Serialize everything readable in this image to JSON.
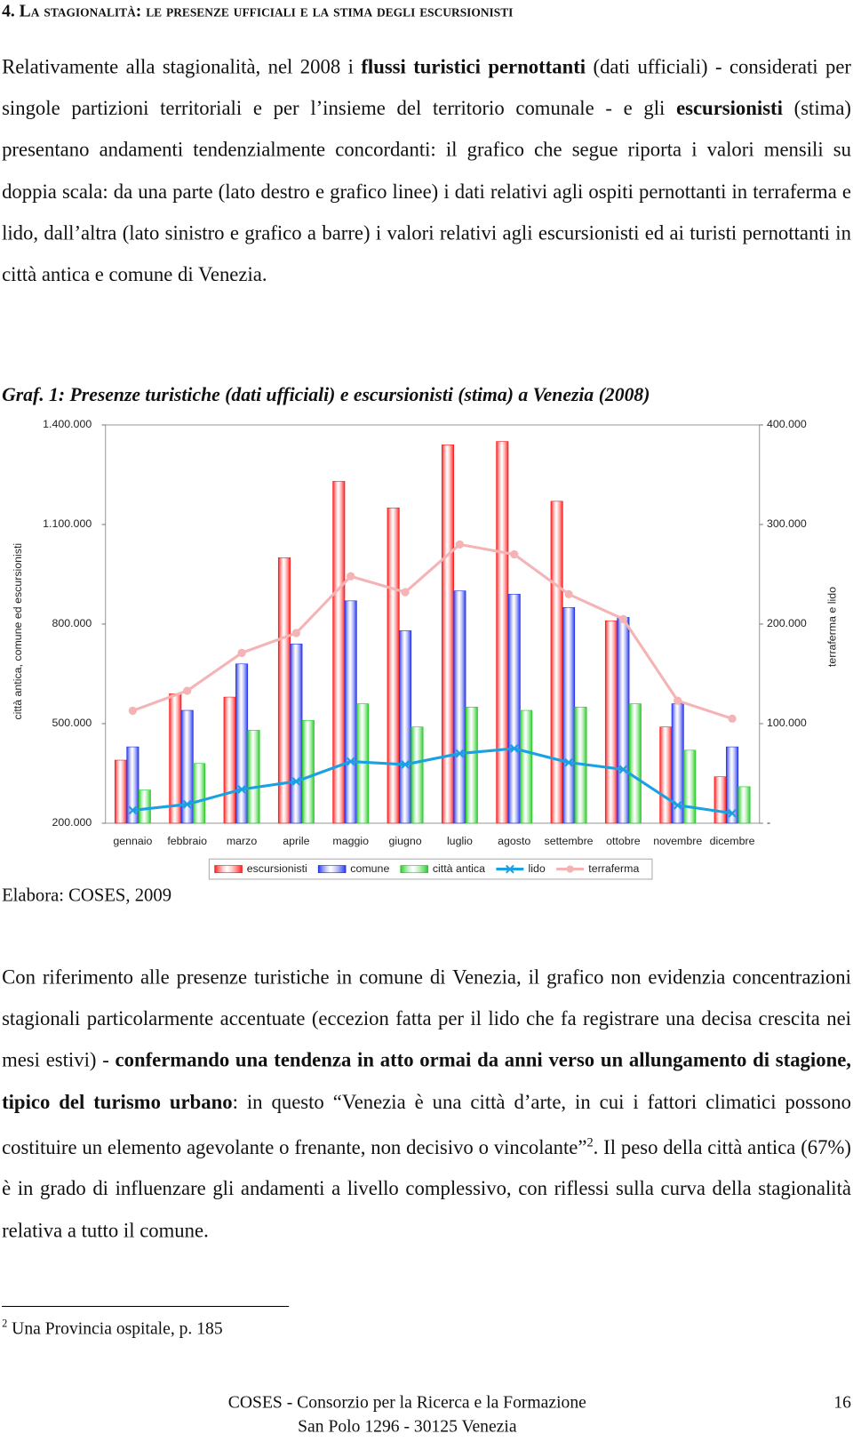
{
  "heading": "4. La stagionalità: le presenze ufficiali e la stima degli escursionisti",
  "paragraphs": [
    [
      {
        "text": "Relativamente alla stagionalità, nel 2008 i "
      },
      {
        "text": "flussi turistici pernottanti",
        "bold": true
      },
      {
        "text": " (dati ufficiali) - considerati per singole partizioni territoriali e per l’insieme del territorio comunale - e gli "
      },
      {
        "text": "escursionisti",
        "bold": true
      },
      {
        "text": " (stima) presentano andamenti tendenzialmente concordanti: il grafico che segue riporta i valori mensili su doppia scala: da una parte (lato destro e grafico linee) i dati relativi agli ospiti pernottanti in terraferma e lido, dall’altra (lato sinistro e grafico a barre) i valori relativi agli escursionisti ed ai turisti pernottanti in città antica e comune di Venezia."
      }
    ],
    [
      {
        "text": "Con riferimento alle presenze turistiche in comune di Venezia, il grafico non evidenzia concentrazioni stagionali particolarmente accentuate (eccezion fatta per il lido che fa registrare una decisa crescita nei mesi estivi) - "
      },
      {
        "text": "confermando una tendenza in atto ormai da anni verso un allungamento di stagione, tipico del turismo urbano",
        "bold": true
      },
      {
        "text": ": in questo “Venezia è una città d’arte, in cui i fattori climatici possono costituire un elemento agevolante o frenante, non decisivo o vincolante”"
      },
      {
        "text": "2",
        "sup": true
      },
      {
        "text": ". Il peso della città antica (67%) è in grado di influenzare gli andamenti a livello complessivo, con riflessi sulla curva della stagionalità relativa a tutto il comune."
      }
    ]
  ],
  "caption": "Graf. 1: Presenze turistiche (dati ufficiali) e escursionisti (stima) a Venezia (2008)",
  "source": "Elabora: COSES, 2009",
  "footnote": {
    "number": "2",
    "text": "Una Provincia ospitale, p. 185"
  },
  "footer": {
    "line1": "COSES - Consorzio per la Ricerca e la Formazione",
    "line2": "San Polo 1296 - 30125 Venezia",
    "page": "16"
  },
  "chart_data": {
    "type": "combo",
    "y_label": "città antica, comune ed escursionisti",
    "y2_label": "terraferma e lido",
    "categories": [
      "gennaio",
      "febbraio",
      "marzo",
      "aprile",
      "maggio",
      "giugno",
      "luglio",
      "agosto",
      "settembre",
      "ottobre",
      "novembre",
      "dicembre"
    ],
    "series": [
      {
        "name": "escursionisti",
        "type": "bar",
        "color": "#ff1a1a",
        "values": [
          390000,
          590000,
          580000,
          1000000,
          1230000,
          1150000,
          1340000,
          1350000,
          1170000,
          810000,
          490000,
          340000
        ]
      },
      {
        "name": "comune",
        "type": "bar",
        "color": "#2233ee",
        "values": [
          430000,
          540000,
          680000,
          740000,
          870000,
          780000,
          900000,
          890000,
          850000,
          820000,
          560000,
          430000
        ]
      },
      {
        "name": "città antica",
        "type": "bar",
        "color": "#22cc22",
        "values": [
          300000,
          380000,
          480000,
          510000,
          560000,
          490000,
          550000,
          540000,
          550000,
          560000,
          420000,
          310000
        ]
      },
      {
        "name": "lido",
        "type": "line",
        "axis": "y2",
        "marker": "x",
        "color": "#1ba1e2",
        "values": [
          13000,
          19000,
          34000,
          42000,
          62000,
          59000,
          70000,
          75000,
          61000,
          54000,
          18000,
          10000
        ]
      },
      {
        "name": "terraferma",
        "type": "line",
        "axis": "y2",
        "marker": "circle",
        "color": "#f4b4b6",
        "values": [
          113000,
          133000,
          171000,
          191000,
          248000,
          232000,
          280000,
          270000,
          230000,
          205000,
          123000,
          105000
        ]
      }
    ],
    "ylim": [
      200000,
      1400000
    ],
    "yticks": [
      {
        "value": 200000,
        "label": "200.000"
      },
      {
        "value": 500000,
        "label": "500.000"
      },
      {
        "value": 800000,
        "label": "800.000"
      },
      {
        "value": 1100000,
        "label": "1.100.000"
      },
      {
        "value": 1400000,
        "label": "1.400.000"
      }
    ],
    "y2lim": [
      0,
      400000
    ],
    "y2ticks": [
      {
        "value": 0,
        "label": "-"
      },
      {
        "value": 100000,
        "label": "100.000"
      },
      {
        "value": 200000,
        "label": "200.000"
      },
      {
        "value": 300000,
        "label": "300.000"
      },
      {
        "value": 400000,
        "label": "400.000"
      }
    ],
    "grid": false,
    "legend": "bottom"
  }
}
